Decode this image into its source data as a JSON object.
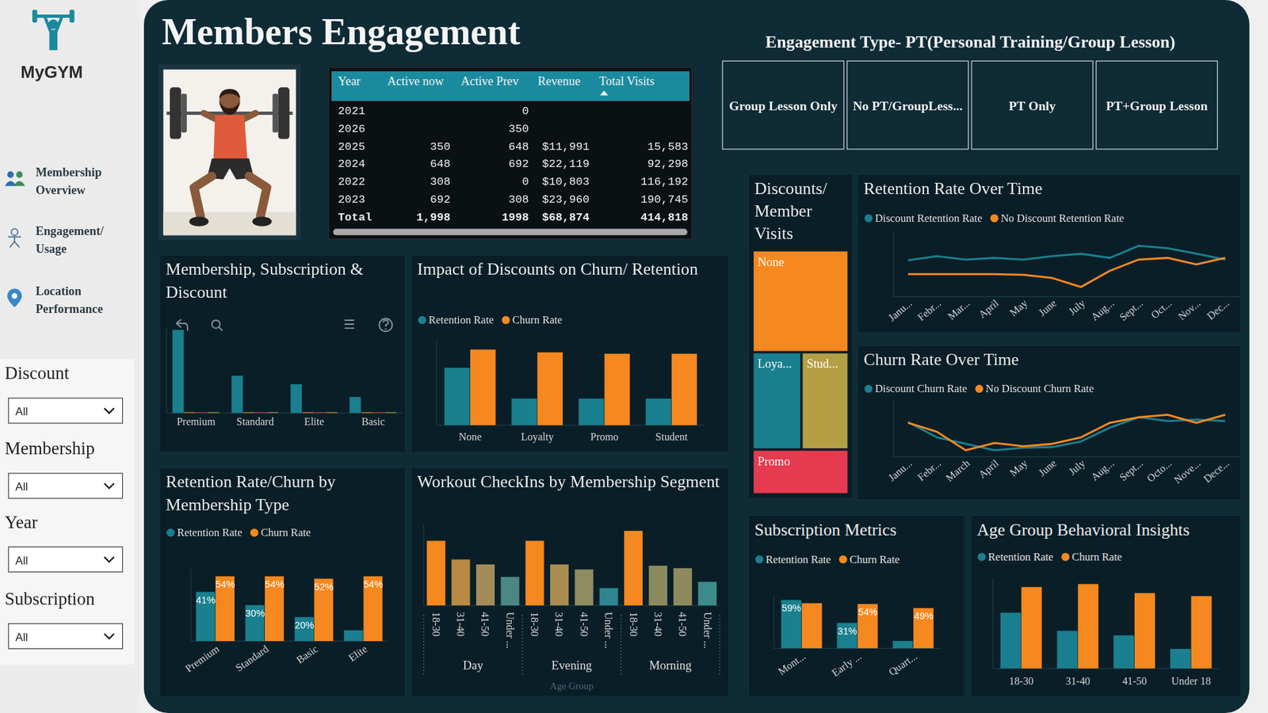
{
  "sidebar": {
    "brand": "MyGYM",
    "nav": [
      "Membership Overview",
      "Engagement/ Usage",
      "Location Performance"
    ],
    "filters": [
      {
        "label": "Discount",
        "value": "All"
      },
      {
        "label": "Membership",
        "value": "All"
      },
      {
        "label": "Year",
        "value": "All"
      },
      {
        "label": "Subscription",
        "value": "All"
      }
    ]
  },
  "header": {
    "title": "Members Engagement"
  },
  "table": {
    "columns": [
      "Year",
      "Active now",
      "Active Prev",
      "Revenue",
      "Total Visits"
    ],
    "rows": [
      [
        "2021",
        null,
        "0",
        null,
        null
      ],
      [
        "2026",
        null,
        "350",
        null,
        null
      ],
      [
        "2025",
        "350",
        "648",
        "$11,991",
        "15,583"
      ],
      [
        "2024",
        "648",
        "692",
        "$22,119",
        "92,298"
      ],
      [
        "2022",
        "308",
        "0",
        "$10,803",
        "116,192"
      ],
      [
        "2023",
        "692",
        "308",
        "$23,960",
        "190,745"
      ]
    ],
    "total": [
      "Total",
      "1,998",
      "1998",
      "$68,874",
      "414,818"
    ]
  },
  "engagement_type": {
    "title": "Engagement Type- PT(Personal Training/Group Lesson)",
    "options": [
      "Group Lesson Only",
      "No PT/GroupLess...",
      "PT Only",
      "PT+Group Lesson"
    ]
  },
  "chart_data": [
    {
      "type": "bar",
      "title": "Membership, Subscription & Discount",
      "categories": [
        "Premium",
        "Standard",
        "Elite",
        "Basic"
      ],
      "series": [
        {
          "color": "#1a7f8e",
          "values": [
            98,
            44,
            34,
            19
          ]
        },
        {
          "color": "#f5881f",
          "values": [
            1,
            1,
            1,
            1
          ]
        },
        {
          "color": "#e8384f",
          "values": [
            1,
            1,
            1,
            1
          ]
        },
        {
          "color": "#b5a046",
          "values": [
            1,
            1,
            1,
            1
          ]
        }
      ],
      "ylim": [
        0,
        100
      ],
      "tick_labels": "x"
    },
    {
      "type": "bar",
      "title": "Impact of Discounts on Churn/ Retention",
      "categories": [
        "None",
        "Loyalty",
        "Promo",
        "Student"
      ],
      "series": [
        {
          "name": "Retention Rate",
          "color": "#1a7f8e",
          "values": [
            41,
            19,
            19,
            19
          ]
        },
        {
          "name": "Churn Rate",
          "color": "#f5881f",
          "values": [
            54,
            52,
            51,
            51
          ]
        }
      ],
      "ylim": [
        0,
        60
      ],
      "legend": "top-left",
      "tick_labels": "x"
    },
    {
      "type": "treemap",
      "title": "Discounts/ Member Visits",
      "categories": [
        "None",
        "Loya...",
        "Stud...",
        "Promo"
      ],
      "values": [
        173000,
        84000,
        81000,
        76000
      ],
      "colors": [
        "#f5881f",
        "#1a7f8e",
        "#b59f45",
        "#e63a50"
      ]
    },
    {
      "type": "line",
      "title": "Retention Rate Over Time",
      "categories": [
        "Janu...",
        "Febr...",
        "Mar...",
        "April",
        "May",
        "June",
        "July",
        "Aug...",
        "Sept...",
        "Oct...",
        "Nov...",
        "Dec..."
      ],
      "series": [
        {
          "name": "Discount Retention Rate",
          "color": "#1a7f8e",
          "values": [
            43,
            44.7,
            43.3,
            44,
            43.3,
            44.7,
            45.7,
            44,
            49,
            48,
            45.7,
            43.3
          ]
        },
        {
          "name": "No Discount Retention Rate",
          "color": "#f5881f",
          "values": [
            37.3,
            37.3,
            37.3,
            37.3,
            37,
            35.7,
            32,
            38.7,
            43.3,
            44,
            41.3,
            44
          ]
        }
      ],
      "ylim": [
        28,
        55
      ],
      "legend": "top-left",
      "tick_labels": "x"
    },
    {
      "type": "line",
      "title": "Churn Rate Over Time",
      "categories": [
        "Janu...",
        "Febr...",
        "March",
        "April",
        "May",
        "June",
        "July",
        "Aug...",
        "Sept...",
        "Octo...",
        "Nove...",
        "Dece..."
      ],
      "series": [
        {
          "name": "Discount Churn Rate",
          "color": "#1a7f8e",
          "values": [
            56.3,
            50,
            47.3,
            44.7,
            45.7,
            46,
            48.3,
            54,
            58.3,
            56.7,
            57.3,
            56.7
          ]
        },
        {
          "name": "No Discount Churn Rate",
          "color": "#f5881f",
          "values": [
            56,
            52.3,
            44.7,
            47.7,
            46.3,
            47.3,
            50,
            56,
            58.3,
            59.3,
            56,
            59.3
          ]
        }
      ],
      "ylim": [
        42,
        65
      ],
      "legend": "top-left",
      "tick_labels": "x"
    },
    {
      "type": "bar",
      "title": "Retention Rate/Churn by Membership Type",
      "categories": [
        "Premium",
        "Standard",
        "Basic",
        "Elite"
      ],
      "series": [
        {
          "name": "Retention Rate",
          "color": "#1a7f8e",
          "values": [
            41,
            30,
            20,
            9
          ],
          "value_labels": [
            "41%",
            "30%",
            "20%",
            null
          ]
        },
        {
          "name": "Churn Rate",
          "color": "#f5881f",
          "values": [
            54,
            54,
            52,
            54
          ],
          "value_labels": [
            "54%",
            "54%",
            "52%",
            "54%"
          ]
        }
      ],
      "ylim": [
        0,
        60
      ],
      "legend": "top-left",
      "data_labels": true,
      "tick_labels": "x"
    },
    {
      "type": "bar",
      "title": "Workout CheckIns by Membership Segment",
      "categories": [
        "18-30",
        "31-40",
        "41-50",
        "Under ...",
        "18-30",
        "31-40",
        "41-50",
        "Under ...",
        "18-30",
        "31-40",
        "41-50",
        "Under ..."
      ],
      "groups": [
        "Day",
        "Evening",
        "Morning"
      ],
      "x_label": "Age Group",
      "values": [
        52000,
        37000,
        33000,
        23000,
        52000,
        33000,
        29000,
        14000,
        60000,
        32000,
        30000,
        19000
      ],
      "colors": [
        "#f5881f",
        "#b88a43",
        "#a38b5a",
        "#4d8783",
        "#f5881f",
        "#a98c50",
        "#8f8c5f",
        "#2f8590",
        "#f5881f",
        "#8d8b5e",
        "#8d8b5e",
        "#3c8a89"
      ],
      "ylim": [
        0,
        65000
      ],
      "tick_labels": "x"
    },
    {
      "type": "bar",
      "title": "Subscription Metrics",
      "categories": [
        "Mont...",
        "Early ...",
        "Quart..."
      ],
      "series": [
        {
          "name": "Retention Rate",
          "color": "#1a7f8e",
          "values": [
            59,
            31,
            9
          ],
          "value_labels": [
            "59%",
            "31%",
            null
          ]
        },
        {
          "name": "Churn Rate",
          "color": "#f5881f",
          "values": [
            55,
            54,
            49
          ],
          "value_labels": [
            null,
            "54%",
            "49%"
          ]
        }
      ],
      "ylim": [
        0,
        65
      ],
      "legend": "top-left",
      "data_labels": true,
      "tick_labels": "x"
    },
    {
      "type": "bar",
      "title": "Age Group Behavioral Insights",
      "categories": [
        "18-30",
        "31-40",
        "41-50",
        "Under 18"
      ],
      "series": [
        {
          "name": "Retention Rate",
          "color": "#1a7f8e",
          "values": [
            37,
            25,
            22,
            13
          ]
        },
        {
          "name": "Churn Rate",
          "color": "#f5881f",
          "values": [
            54,
            56,
            50,
            48
          ]
        }
      ],
      "ylim": [
        0,
        60
      ],
      "legend": "top-left",
      "tick_labels": "x"
    }
  ]
}
